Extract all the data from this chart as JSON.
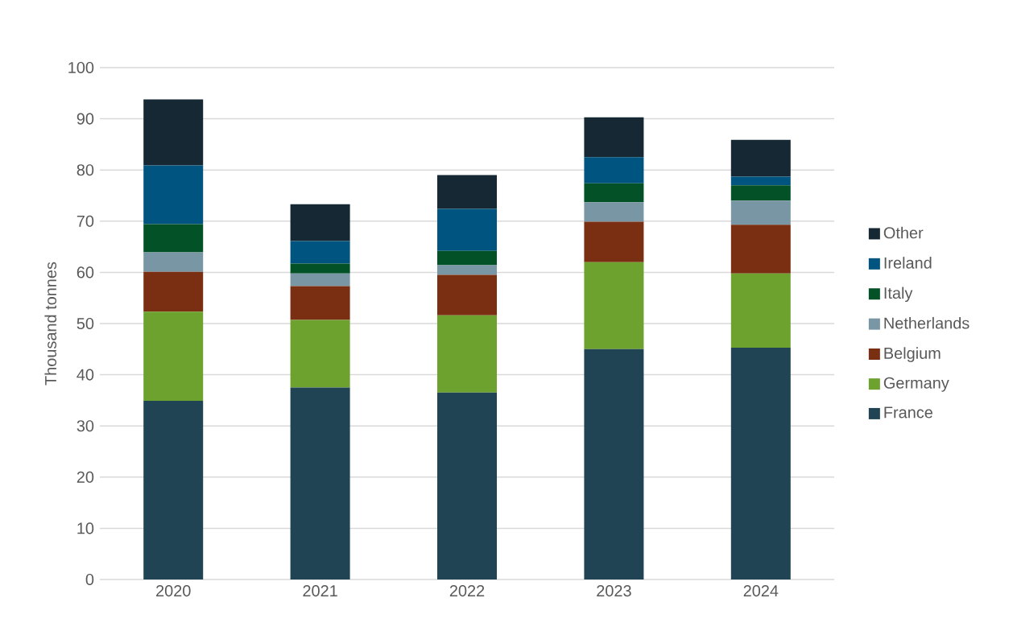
{
  "chart_data": {
    "type": "bar",
    "stacked": true,
    "ylabel": "Thousand tonnes",
    "categories": [
      "2020",
      "2021",
      "2022",
      "2023",
      "2024"
    ],
    "ylim": [
      0,
      100
    ],
    "yticks": [
      0,
      10,
      20,
      30,
      40,
      50,
      60,
      70,
      80,
      90,
      100
    ],
    "grid": "y",
    "legend": "right",
    "series": [
      {
        "name": "France",
        "color": "#204454",
        "values": [
          34.9,
          37.5,
          36.5,
          45.0,
          45.3
        ]
      },
      {
        "name": "Germany",
        "color": "#6ea22f",
        "values": [
          17.4,
          13.2,
          15.1,
          17.0,
          14.5
        ]
      },
      {
        "name": "Belgium",
        "color": "#7b2f12",
        "values": [
          7.8,
          6.6,
          7.9,
          7.9,
          9.5
        ]
      },
      {
        "name": "Netherlands",
        "color": "#7896a3",
        "values": [
          3.8,
          2.5,
          1.9,
          3.8,
          4.7
        ]
      },
      {
        "name": "Italy",
        "color": "#035227",
        "values": [
          5.5,
          1.9,
          2.8,
          3.7,
          3.0
        ]
      },
      {
        "name": "Ireland",
        "color": "#005580",
        "values": [
          11.5,
          4.4,
          8.2,
          5.1,
          1.7
        ]
      },
      {
        "name": "Other",
        "color": "#162833",
        "values": [
          12.9,
          7.2,
          6.6,
          7.8,
          7.2
        ]
      }
    ]
  }
}
